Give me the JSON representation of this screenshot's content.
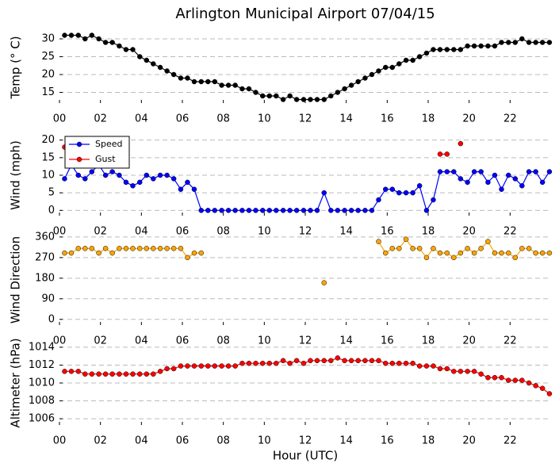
{
  "chart_data": [
    {
      "type": "line",
      "title": "Arlington Municipal Airport 07/04/15",
      "ylabel": "Temp (° C)",
      "color": "#000000",
      "x": [
        0.25,
        0.58,
        0.92,
        1.25,
        1.58,
        1.92,
        2.25,
        2.58,
        2.92,
        3.25,
        3.58,
        3.92,
        4.25,
        4.58,
        4.92,
        5.25,
        5.58,
        5.92,
        6.25,
        6.58,
        6.92,
        7.25,
        7.58,
        7.92,
        8.25,
        8.58,
        8.92,
        9.25,
        9.58,
        9.92,
        10.25,
        10.58,
        10.92,
        11.25,
        11.58,
        11.92,
        12.25,
        12.58,
        12.92,
        13.25,
        13.58,
        13.92,
        14.25,
        14.58,
        14.92,
        15.25,
        15.58,
        15.92,
        16.25,
        16.58,
        16.92,
        17.25,
        17.58,
        17.92,
        18.25,
        18.58,
        18.92,
        19.25,
        19.58,
        19.92,
        20.25,
        20.58,
        20.92,
        21.25,
        21.58,
        21.92,
        22.25,
        22.58,
        22.92,
        23.25,
        23.58,
        23.92
      ],
      "values": [
        31,
        31,
        31,
        30,
        31,
        30,
        29,
        29,
        28,
        27,
        27,
        25,
        24,
        23,
        22,
        21,
        20,
        19,
        19,
        18,
        18,
        18,
        18,
        17,
        17,
        17,
        16,
        16,
        15,
        14,
        14,
        14,
        13,
        14,
        13,
        13,
        13,
        13,
        13,
        14,
        15,
        16,
        17,
        18,
        19,
        20,
        21,
        22,
        22,
        23,
        24,
        24,
        25,
        26,
        27,
        27,
        27,
        27,
        27,
        28,
        28,
        28,
        28,
        28,
        29,
        29,
        29,
        30,
        29,
        29,
        29,
        29
      ],
      "xlim": [
        0,
        24
      ],
      "xticks": [
        {
          "value": 0,
          "label": "00"
        },
        {
          "value": 2,
          "label": "02"
        },
        {
          "value": 4,
          "label": "04"
        },
        {
          "value": 6,
          "label": "06"
        },
        {
          "value": 8,
          "label": "08"
        },
        {
          "value": 10,
          "label": "10"
        },
        {
          "value": 12,
          "label": "12"
        },
        {
          "value": 14,
          "label": "14"
        },
        {
          "value": 16,
          "label": "16"
        },
        {
          "value": 18,
          "label": "18"
        },
        {
          "value": 20,
          "label": "20"
        },
        {
          "value": 22,
          "label": "22"
        }
      ],
      "ylim": [
        12,
        32
      ],
      "yticks": [
        15,
        20,
        25,
        30
      ],
      "grid": true
    },
    {
      "type": "line",
      "ylabel": "Wind (mph)",
      "legend": "upper left",
      "x": [
        0.25,
        0.58,
        0.92,
        1.25,
        1.58,
        1.92,
        2.25,
        2.58,
        2.92,
        3.25,
        3.58,
        3.92,
        4.25,
        4.58,
        4.92,
        5.25,
        5.58,
        5.92,
        6.25,
        6.58,
        6.92,
        7.25,
        7.58,
        7.92,
        8.25,
        8.58,
        8.92,
        9.25,
        9.58,
        9.92,
        10.25,
        10.58,
        10.92,
        11.25,
        11.58,
        11.92,
        12.25,
        12.58,
        12.92,
        13.25,
        13.58,
        13.92,
        14.25,
        14.58,
        14.92,
        15.25,
        15.58,
        15.92,
        16.25,
        16.58,
        16.92,
        17.25,
        17.58,
        17.92,
        18.25,
        18.58,
        18.92,
        19.25,
        19.58,
        19.92,
        20.25,
        20.58,
        20.92,
        21.25,
        21.58,
        21.92,
        22.25,
        22.58,
        22.92,
        23.25,
        23.58,
        23.92
      ],
      "series": [
        {
          "name": "Speed",
          "color": "#0000ff",
          "values": [
            9,
            13,
            10,
            9,
            11,
            13,
            10,
            11,
            10,
            8,
            7,
            8,
            10,
            9,
            10,
            10,
            9,
            6,
            8,
            6,
            0,
            0,
            0,
            0,
            0,
            0,
            0,
            0,
            0,
            0,
            0,
            0,
            0,
            0,
            0,
            0,
            0,
            0,
            5,
            0,
            0,
            0,
            0,
            0,
            0,
            0,
            3,
            6,
            6,
            5,
            5,
            5,
            7,
            0,
            3,
            11,
            11,
            11,
            9,
            8,
            11,
            11,
            8,
            10,
            6,
            10,
            9,
            7,
            11,
            11,
            8,
            11
          ]
        },
        {
          "name": "Gust",
          "color": "#ff0000",
          "values": [
            18,
            null,
            null,
            null,
            null,
            null,
            null,
            null,
            null,
            null,
            null,
            null,
            null,
            null,
            null,
            null,
            null,
            null,
            null,
            null,
            null,
            null,
            null,
            null,
            null,
            null,
            null,
            null,
            null,
            null,
            null,
            null,
            null,
            null,
            null,
            null,
            null,
            null,
            null,
            null,
            null,
            null,
            null,
            null,
            null,
            null,
            null,
            null,
            null,
            null,
            null,
            null,
            null,
            null,
            null,
            16,
            16,
            null,
            19,
            null,
            null,
            null,
            null,
            null,
            null,
            null,
            null,
            null,
            null,
            null,
            null,
            null
          ]
        }
      ],
      "xlim": [
        0,
        24
      ],
      "xticks": [
        {
          "value": 0,
          "label": "00"
        },
        {
          "value": 2,
          "label": "02"
        },
        {
          "value": 4,
          "label": "04"
        },
        {
          "value": 6,
          "label": "06"
        },
        {
          "value": 8,
          "label": "08"
        },
        {
          "value": 10,
          "label": "10"
        },
        {
          "value": 12,
          "label": "12"
        },
        {
          "value": 14,
          "label": "14"
        },
        {
          "value": 16,
          "label": "16"
        },
        {
          "value": 18,
          "label": "18"
        },
        {
          "value": 20,
          "label": "20"
        },
        {
          "value": 22,
          "label": "22"
        }
      ],
      "ylim": [
        -1.5,
        21.5
      ],
      "yticks": [
        0,
        5,
        10,
        15,
        20
      ],
      "grid": true
    },
    {
      "type": "line",
      "ylabel": "Wind Direction",
      "color": "#ffa500",
      "x": [
        0.25,
        0.58,
        0.92,
        1.25,
        1.58,
        1.92,
        2.25,
        2.58,
        2.92,
        3.25,
        3.58,
        3.92,
        4.25,
        4.58,
        4.92,
        5.25,
        5.58,
        5.92,
        6.25,
        6.58,
        6.92,
        7.25,
        7.58,
        7.92,
        8.25,
        8.58,
        8.92,
        9.25,
        9.58,
        9.92,
        10.25,
        10.58,
        10.92,
        11.25,
        11.58,
        11.92,
        12.25,
        12.58,
        12.92,
        13.25,
        13.58,
        13.92,
        14.25,
        14.58,
        14.92,
        15.25,
        15.58,
        15.92,
        16.25,
        16.58,
        16.92,
        17.25,
        17.58,
        17.92,
        18.25,
        18.58,
        18.92,
        19.25,
        19.58,
        19.92,
        20.25,
        20.58,
        20.92,
        21.25,
        21.58,
        21.92,
        22.25,
        22.58,
        22.92,
        23.25,
        23.58,
        23.92
      ],
      "values": [
        290,
        290,
        310,
        310,
        310,
        290,
        310,
        290,
        310,
        310,
        310,
        310,
        310,
        310,
        310,
        310,
        310,
        310,
        270,
        290,
        290,
        null,
        null,
        null,
        null,
        null,
        null,
        null,
        null,
        null,
        null,
        null,
        null,
        null,
        null,
        null,
        null,
        null,
        160,
        null,
        null,
        null,
        null,
        null,
        null,
        null,
        340,
        290,
        310,
        310,
        350,
        310,
        310,
        270,
        310,
        290,
        290,
        270,
        290,
        310,
        290,
        310,
        340,
        290,
        290,
        290,
        270,
        310,
        310,
        290,
        290,
        290
      ],
      "xlim": [
        0,
        24
      ],
      "xticks": [
        {
          "value": 0,
          "label": "00"
        },
        {
          "value": 2,
          "label": "02"
        },
        {
          "value": 4,
          "label": "04"
        },
        {
          "value": 6,
          "label": "06"
        },
        {
          "value": 8,
          "label": "08"
        },
        {
          "value": 10,
          "label": "10"
        },
        {
          "value": 12,
          "label": "12"
        },
        {
          "value": 14,
          "label": "14"
        },
        {
          "value": 16,
          "label": "16"
        },
        {
          "value": 18,
          "label": "18"
        },
        {
          "value": 20,
          "label": "20"
        },
        {
          "value": 22,
          "label": "22"
        }
      ],
      "ylim": [
        -25,
        370
      ],
      "yticks": [
        0,
        90,
        180,
        270,
        360
      ],
      "grid": true
    },
    {
      "type": "line",
      "ylabel": "Altimeter (hPa)",
      "xlabel": "Hour (UTC)",
      "color": "#ff0000",
      "x": [
        0.25,
        0.58,
        0.92,
        1.25,
        1.58,
        1.92,
        2.25,
        2.58,
        2.92,
        3.25,
        3.58,
        3.92,
        4.25,
        4.58,
        4.92,
        5.25,
        5.58,
        5.92,
        6.25,
        6.58,
        6.92,
        7.25,
        7.58,
        7.92,
        8.25,
        8.58,
        8.92,
        9.25,
        9.58,
        9.92,
        10.25,
        10.58,
        10.92,
        11.25,
        11.58,
        11.92,
        12.25,
        12.58,
        12.92,
        13.25,
        13.58,
        13.92,
        14.25,
        14.58,
        14.92,
        15.25,
        15.58,
        15.92,
        16.25,
        16.58,
        16.92,
        17.25,
        17.58,
        17.92,
        18.25,
        18.58,
        18.92,
        19.25,
        19.58,
        19.92,
        20.25,
        20.58,
        20.92,
        21.25,
        21.58,
        21.92,
        22.25,
        22.58,
        22.92,
        23.25,
        23.58,
        23.92
      ],
      "values": [
        1011.3,
        1011.3,
        1011.3,
        1011,
        1011,
        1011,
        1011,
        1011,
        1011,
        1011,
        1011,
        1011,
        1011,
        1011,
        1011.3,
        1011.6,
        1011.6,
        1011.9,
        1011.9,
        1011.9,
        1011.9,
        1011.9,
        1011.9,
        1011.9,
        1011.9,
        1011.9,
        1012.2,
        1012.2,
        1012.2,
        1012.2,
        1012.2,
        1012.2,
        1012.5,
        1012.2,
        1012.5,
        1012.2,
        1012.5,
        1012.5,
        1012.5,
        1012.5,
        1012.8,
        1012.5,
        1012.5,
        1012.5,
        1012.5,
        1012.5,
        1012.5,
        1012.2,
        1012.2,
        1012.2,
        1012.2,
        1012.2,
        1011.9,
        1011.9,
        1011.9,
        1011.6,
        1011.6,
        1011.3,
        1011.3,
        1011.3,
        1011.3,
        1011,
        1010.6,
        1010.6,
        1010.6,
        1010.3,
        1010.3,
        1010.3,
        1010,
        1009.7,
        1009.4,
        1008.8
      ],
      "xlim": [
        0,
        24
      ],
      "xticks": [
        {
          "value": 0,
          "label": "00"
        },
        {
          "value": 2,
          "label": "02"
        },
        {
          "value": 4,
          "label": "04"
        },
        {
          "value": 6,
          "label": "06"
        },
        {
          "value": 8,
          "label": "08"
        },
        {
          "value": 10,
          "label": "10"
        },
        {
          "value": 12,
          "label": "12"
        },
        {
          "value": 14,
          "label": "14"
        },
        {
          "value": 16,
          "label": "16"
        },
        {
          "value": 18,
          "label": "18"
        },
        {
          "value": 20,
          "label": "20"
        },
        {
          "value": 22,
          "label": "22"
        }
      ],
      "ylim": [
        1005.3,
        1014.7
      ],
      "yticks": [
        1006,
        1008,
        1010,
        1012,
        1014
      ],
      "grid": true
    }
  ]
}
